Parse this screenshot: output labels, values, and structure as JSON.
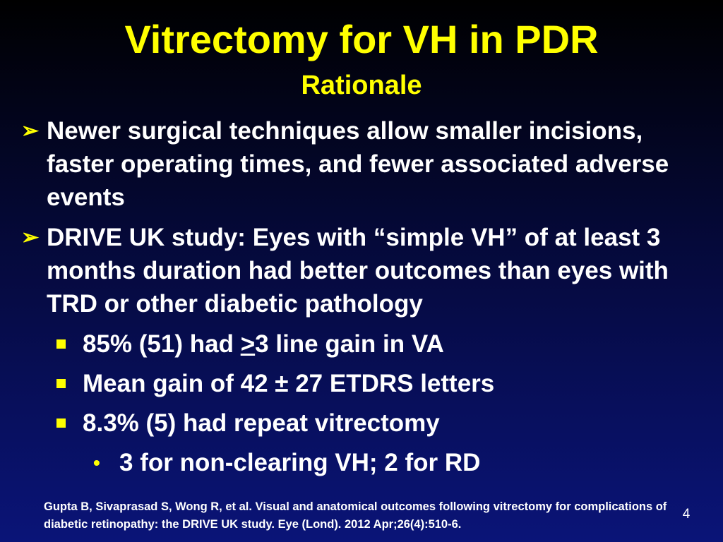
{
  "slide": {
    "title": "Vitrectomy for VH in PDR",
    "subtitle": "Rationale",
    "bullets": [
      {
        "text": "Newer surgical techniques allow smaller incisions, faster operating times, and fewer associated adverse events"
      },
      {
        "text": "DRIVE UK study:  Eyes with “simple VH” of at least 3 months duration had better outcomes than eyes with TRD or other diabetic pathology",
        "sub": [
          {
            "before": "85% (51) had ",
            "underlined": ">",
            "after": "3 line gain in VA"
          },
          {
            "text": "Mean gain of 42 ± 27 ETDRS letters"
          },
          {
            "text": "8.3% (5) had repeat vitrectomy",
            "sub": [
              {
                "text": "3 for non-clearing VH; 2 for RD"
              }
            ]
          }
        ]
      }
    ],
    "citation": "Gupta B, Sivaprasad S, Wong R, et al. Visual and anatomical outcomes following vitrectomy for complications of diabetic retinopathy: the DRIVE UK study. Eye (Lond). 2012 Apr;26(4):510-6.",
    "slide_number": "4"
  },
  "colors": {
    "title": "#ffff00",
    "bullet_marker": "#ffff00",
    "body_text": "#ffffff",
    "background_top": "#000000",
    "background_bottom": "#0a1478"
  },
  "icons": {
    "level1_marker": "arrow-bullet-icon",
    "level2_marker": "square-bullet-icon",
    "level3_marker": "dot-bullet-icon"
  }
}
